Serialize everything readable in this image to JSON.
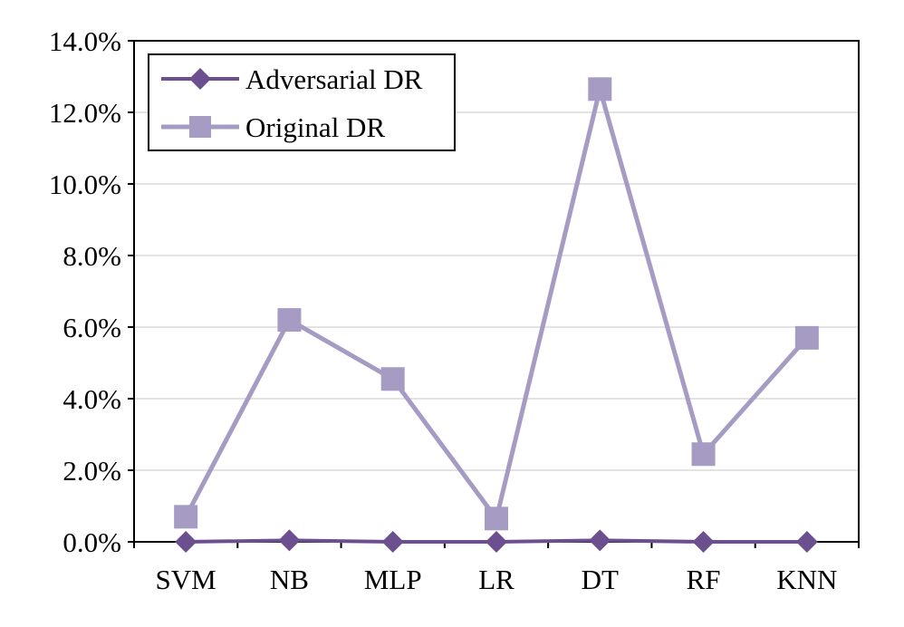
{
  "chart_data": {
    "type": "line",
    "title": "",
    "xlabel": "",
    "ylabel": "",
    "categories": [
      "SVM",
      "NB",
      "MLP",
      "LR",
      "DT",
      "RF",
      "KNN"
    ],
    "ylim": [
      0,
      14
    ],
    "y_tick_values": [
      0,
      2,
      4,
      6,
      8,
      10,
      12,
      14
    ],
    "y_tick_labels": [
      "0.0%",
      "2.0%",
      "4.0%",
      "6.0%",
      "8.0%",
      "10.0%",
      "12.0%",
      "14.0%"
    ],
    "grid": "horizontal",
    "legend_position": "top-left",
    "series": [
      {
        "name": "Adversarial DR",
        "marker": "diamond",
        "color": "#6b4f8e",
        "values": [
          0.0,
          0.04,
          0.0,
          0.0,
          0.04,
          0.0,
          0.0
        ]
      },
      {
        "name": "Original DR",
        "marker": "square",
        "color": "#a59bc3",
        "values": [
          0.7,
          6.2,
          4.55,
          0.65,
          12.65,
          2.45,
          5.7
        ]
      }
    ]
  }
}
